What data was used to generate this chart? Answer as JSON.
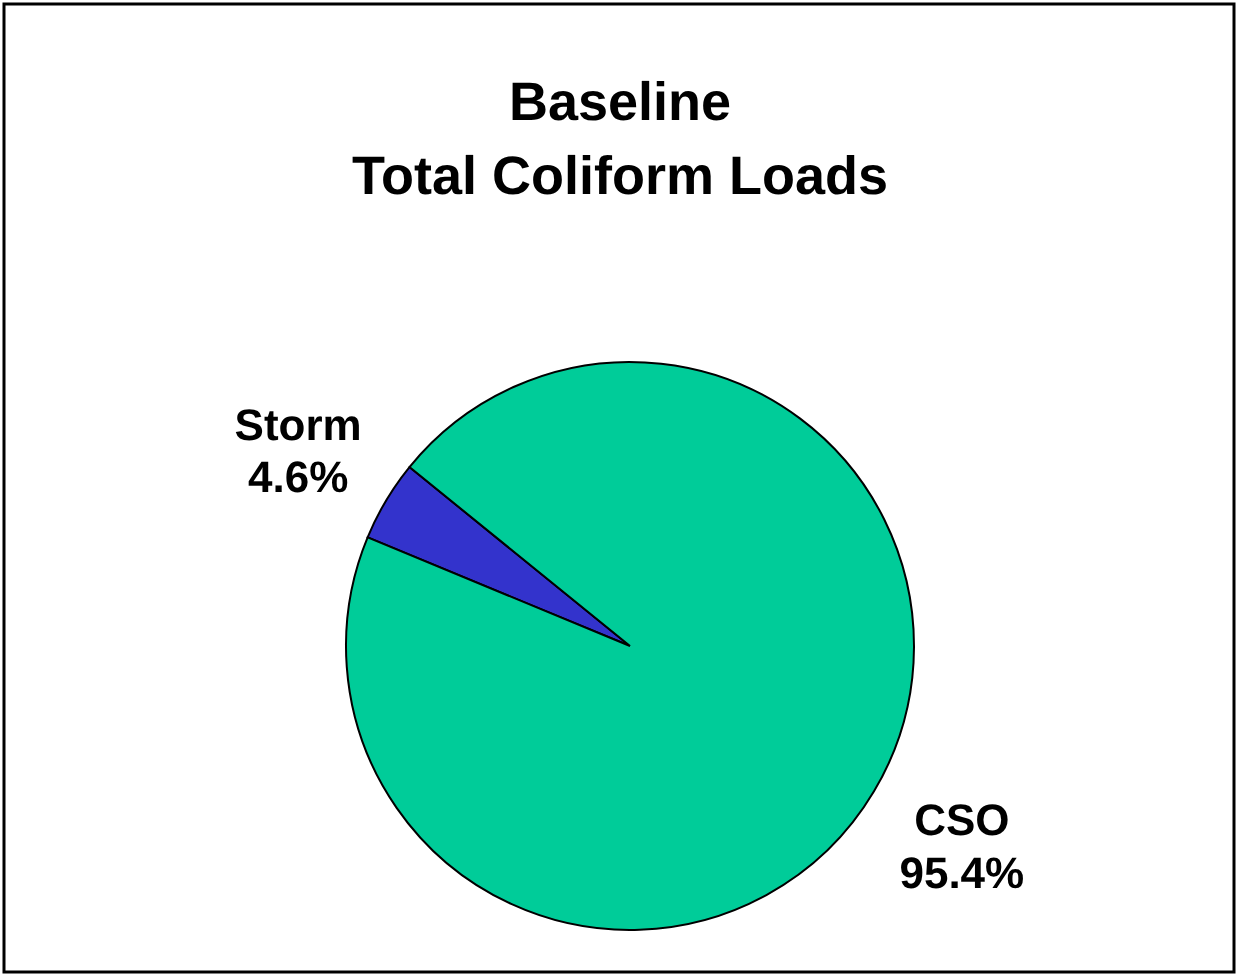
{
  "chart_data": {
    "type": "pie",
    "title": "Baseline\nTotal Coliform Loads",
    "categories": [
      "Storm",
      "CSO"
    ],
    "values": [
      4.6,
      95.4
    ],
    "colors": [
      "#3333cc",
      "#00cc99"
    ],
    "value_labels": [
      "4.6%",
      "95.4%"
    ]
  }
}
